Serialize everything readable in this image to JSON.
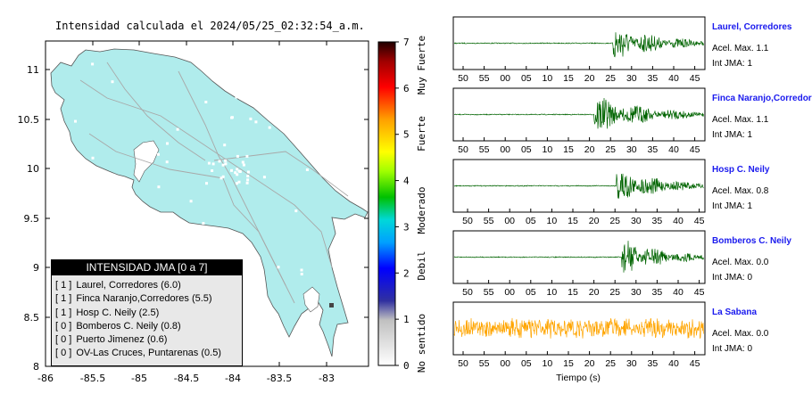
{
  "map": {
    "title": "Intensidad calculada el 2024/05/25_02:32:54_a.m.",
    "x_ticks": [
      "-86",
      "-85.5",
      "-85",
      "-84.5",
      "-84",
      "-83.5",
      "-83"
    ],
    "y_ticks": [
      "11",
      "10.5",
      "10",
      "9.5",
      "9",
      "8.5",
      "8"
    ],
    "land_color": "#b0ecec"
  },
  "colorbar": {
    "ticks": [
      "0",
      "1",
      "2",
      "3",
      "4",
      "5",
      "6",
      "7"
    ],
    "labels": [
      "No sentido",
      "Debil",
      "Moderado",
      "Fuerte",
      "Muy Fuerte"
    ]
  },
  "legend": {
    "title": "INTENSIDAD JMA [0 a 7]",
    "items": [
      {
        "level": "[ 1 ]",
        "text": "Laurel, Corredores (6.0)"
      },
      {
        "level": "[ 1 ]",
        "text": "Finca Naranjo,Corredores (5.5)"
      },
      {
        "level": "[ 1 ]",
        "text": "Hosp C. Neily (2.5)"
      },
      {
        "level": "[ 0 ]",
        "text": "Bomberos C. Neily (0.8)"
      },
      {
        "level": "[ 0 ]",
        "text": "Puerto Jimenez (0.6)"
      },
      {
        "level": "[ 0 ]",
        "text": "OV-Las Cruces, Puntarenas (0.5)"
      }
    ]
  },
  "waveforms": {
    "xlabel": "Tiempo (s)",
    "panels": [
      {
        "name": "Laurel, Corredores",
        "accel": "Acel. Max. 1.1",
        "int": "Int JMA: 1",
        "color": "#006400",
        "onset": 0.635,
        "peak": 0.9,
        "ticks": [
          "50",
          "55",
          "00",
          "05",
          "10",
          "15",
          "20",
          "25",
          "30",
          "35",
          "40",
          "45"
        ]
      },
      {
        "name": "Finca Naranjo,Corredores",
        "accel": "Acel. Max. 1.1",
        "int": "Int JMA: 1",
        "color": "#006400",
        "onset": 0.56,
        "peak": 0.9,
        "ticks": [
          "50",
          "55",
          "00",
          "05",
          "10",
          "15",
          "20",
          "25",
          "30",
          "35",
          "40",
          "45"
        ]
      },
      {
        "name": "Hosp C. Neily",
        "accel": "Acel. Max. 0.8",
        "int": "Int JMA: 1",
        "color": "#006400",
        "onset": 0.65,
        "peak": 0.9,
        "ticks": [
          "50",
          "55",
          "00",
          "05",
          "10",
          "15",
          "20",
          "25",
          "30",
          "35",
          "40",
          "45"
        ]
      },
      {
        "name": "Bomberos C. Neily",
        "accel": "Acel. Max. 0.0",
        "int": "Int JMA: 0",
        "color": "#006400",
        "onset": 0.67,
        "peak": 0.9,
        "ticks": [
          "50",
          "55",
          "00",
          "05",
          "10",
          "15",
          "20",
          "25",
          "30",
          "35",
          "40",
          "45"
        ]
      },
      {
        "name": "La Sabana",
        "accel": "Acel. Max. 0.0",
        "int": "Int JMA: 0",
        "color": "#ffa500",
        "onset": 0,
        "peak": 0.7,
        "ticks": [
          "50",
          "55",
          "00",
          "05",
          "10",
          "15",
          "20",
          "25",
          "30",
          "35",
          "40",
          "45"
        ]
      }
    ]
  }
}
